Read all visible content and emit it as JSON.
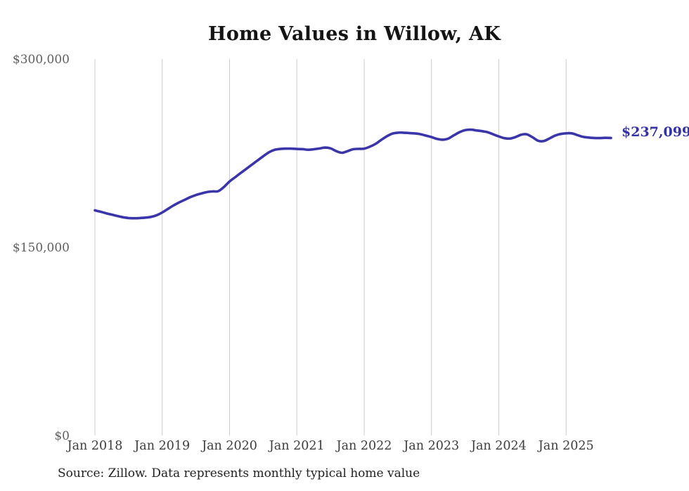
{
  "page": {
    "background": "#ffffff"
  },
  "chart": {
    "title": "Home Values in Willow, AK",
    "end_label": "$237,099",
    "source_note": "Source: Zillow. Data represents monthly typical home value",
    "line_color": "#3a35a8",
    "grid_color": "#cccccc",
    "x_label_color": "#3d3d3d",
    "y_label_color": "#5f5f5f"
  },
  "chart_data": {
    "type": "line",
    "title": "Home Values in Willow, AK",
    "series_name": "Typical home value (USD)",
    "x": [
      "2018-01",
      "2018-02",
      "2018-03",
      "2018-04",
      "2018-05",
      "2018-06",
      "2018-07",
      "2018-08",
      "2018-09",
      "2018-10",
      "2018-11",
      "2018-12",
      "2019-01",
      "2019-02",
      "2019-03",
      "2019-04",
      "2019-05",
      "2019-06",
      "2019-07",
      "2019-08",
      "2019-09",
      "2019-10",
      "2019-11",
      "2019-12",
      "2020-01",
      "2020-02",
      "2020-03",
      "2020-04",
      "2020-05",
      "2020-06",
      "2020-07",
      "2020-08",
      "2020-09",
      "2020-10",
      "2020-11",
      "2020-12",
      "2021-01",
      "2021-02",
      "2021-03",
      "2021-04",
      "2021-05",
      "2021-06",
      "2021-07",
      "2021-08",
      "2021-09",
      "2021-10",
      "2021-11",
      "2021-12",
      "2022-01",
      "2022-02",
      "2022-03",
      "2022-04",
      "2022-05",
      "2022-06",
      "2022-07",
      "2022-08",
      "2022-09",
      "2022-10",
      "2022-11",
      "2022-12",
      "2023-01",
      "2023-02",
      "2023-03",
      "2023-04",
      "2023-05",
      "2023-06",
      "2023-07",
      "2023-08",
      "2023-09",
      "2023-10",
      "2023-11",
      "2023-12",
      "2024-01",
      "2024-02",
      "2024-03",
      "2024-04",
      "2024-05",
      "2024-06",
      "2024-07",
      "2024-08",
      "2024-09",
      "2024-10",
      "2024-11",
      "2024-12",
      "2025-01",
      "2025-02",
      "2025-03",
      "2025-04",
      "2025-05",
      "2025-06",
      "2025-07",
      "2025-08",
      "2025-09"
    ],
    "values": [
      179400,
      178300,
      177100,
      176000,
      174900,
      173900,
      173300,
      173100,
      173300,
      173600,
      174200,
      175500,
      177700,
      180500,
      183300,
      185700,
      187800,
      189900,
      191600,
      192900,
      194000,
      194500,
      194700,
      198000,
      202400,
      205800,
      209200,
      212500,
      215900,
      219200,
      222500,
      225600,
      227600,
      228300,
      228600,
      228600,
      228300,
      228200,
      227700,
      228100,
      228700,
      229400,
      228800,
      226600,
      225300,
      226500,
      228100,
      228400,
      228600,
      230100,
      232300,
      235400,
      238300,
      240500,
      241300,
      241300,
      241000,
      240700,
      240100,
      239000,
      237800,
      236300,
      235700,
      236600,
      239200,
      241700,
      243300,
      243700,
      243100,
      242500,
      241700,
      240000,
      238300,
      236900,
      236600,
      237800,
      239700,
      240000,
      237700,
      234900,
      234600,
      236600,
      238900,
      240200,
      240800,
      240800,
      239400,
      238000,
      237400,
      237100,
      237000,
      237200,
      237099
    ],
    "last_value": 237099,
    "last_point_label": "$237,099",
    "x_tick_labels": [
      "Jan 2018",
      "Jan 2019",
      "Jan 2020",
      "Jan 2021",
      "Jan 2022",
      "Jan 2023",
      "Jan 2024",
      "Jan 2025"
    ],
    "x_tick_indices": [
      0,
      12,
      24,
      36,
      48,
      60,
      72,
      84
    ],
    "y_ticks": [
      {
        "label": "$0",
        "value": 0
      },
      {
        "label": "$150,000",
        "value": 150000
      },
      {
        "label": "$300,000",
        "value": 300000
      }
    ],
    "ylim": [
      0,
      300000
    ],
    "grid": "vertical-only",
    "legend": "none",
    "source": "Source: Zillow. Data represents monthly typical home value"
  }
}
